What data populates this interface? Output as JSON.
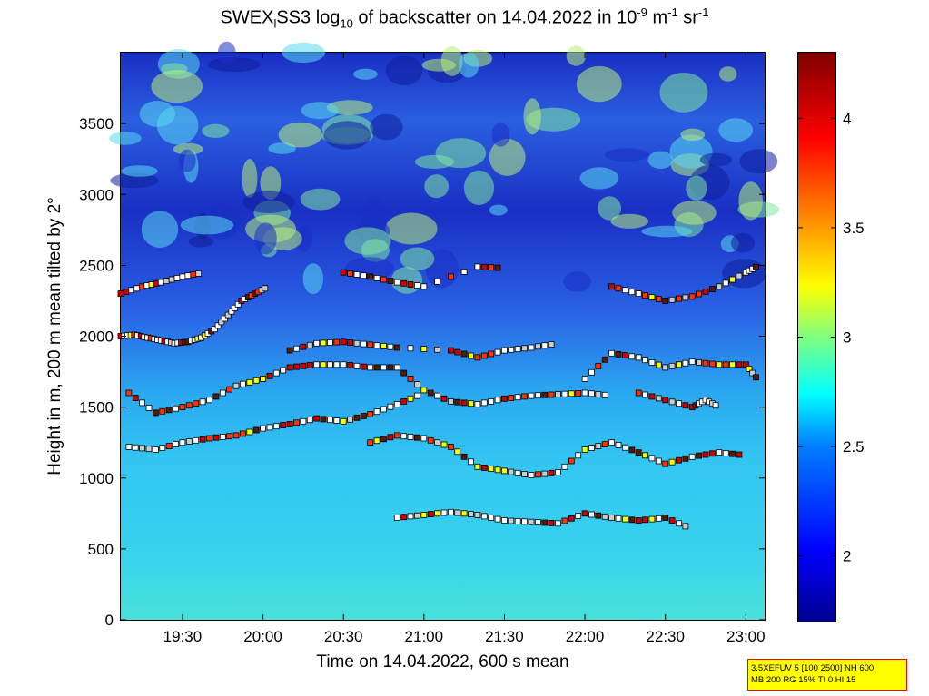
{
  "title": {
    "part1": "SWEX",
    "sub1": "l",
    "part2": "SS3 log",
    "sub2": "10",
    "part3": " of backscatter on 14.04.2022 in 10",
    "sup1": "-9",
    "part4": " m",
    "sup2": "-1",
    "part5": " sr",
    "sup3": "-1"
  },
  "info_box": {
    "line1": "3.5XEFUV 5 [100 2500] NH 600",
    "line2": "MB 200 RG 15% TI 0 HI 15"
  },
  "chart_data": {
    "type": "heatmap",
    "title": "SWEXlSS3 log10 of backscatter on 14.04.2022 in 10^-9 m^-1 sr^-1",
    "xlabel": "Time on 14.04.2022, 600 s mean",
    "ylabel": "Height in m, 200 m mean tilted by 2°",
    "x_ticks": [
      "19:30",
      "20:00",
      "20:30",
      "21:00",
      "21:30",
      "22:00",
      "22:30",
      "23:00"
    ],
    "xlim": [
      "19:07",
      "23:07"
    ],
    "y_ticks": [
      0,
      500,
      1000,
      1500,
      2000,
      2500,
      3000,
      3500
    ],
    "ylim": [
      0,
      4000
    ],
    "colorbar": {
      "ticks": [
        2,
        2.5,
        3,
        3.5,
        4
      ],
      "range": [
        1.7,
        4.3
      ],
      "colormap": "jet"
    },
    "layer_markers": [
      {
        "name": "layer-2000",
        "times": [
          "19:07",
          "19:12",
          "19:17",
          "19:22",
          "19:27",
          "19:32",
          "19:37",
          "19:42",
          "19:47",
          "19:52",
          "19:57",
          "20:02"
        ],
        "heights": [
          2000,
          2010,
          1990,
          1970,
          1950,
          1960,
          1990,
          2050,
          2150,
          2250,
          2300,
          2350
        ]
      },
      {
        "name": "layer-2400",
        "times": [
          "19:07",
          "19:15",
          "19:22",
          "19:30",
          "19:38"
        ],
        "heights": [
          2300,
          2350,
          2380,
          2420,
          2450
        ]
      },
      {
        "name": "layer-1500",
        "times": [
          "19:10",
          "19:20",
          "19:30",
          "19:40",
          "19:50",
          "20:00",
          "20:10",
          "20:20",
          "20:30",
          "20:40",
          "20:50",
          "21:00",
          "21:10",
          "21:20",
          "21:30",
          "21:40",
          "21:50",
          "22:00",
          "22:10"
        ],
        "heights": [
          1600,
          1460,
          1500,
          1550,
          1650,
          1700,
          1780,
          1800,
          1800,
          1780,
          1780,
          1620,
          1540,
          1520,
          1560,
          1580,
          1590,
          1600,
          1580
        ]
      },
      {
        "name": "layer-1250",
        "times": [
          "19:10",
          "19:20",
          "19:30",
          "19:40",
          "19:50",
          "20:00",
          "20:10",
          "20:20",
          "20:30",
          "20:40",
          "20:50",
          "21:00"
        ],
        "heights": [
          1220,
          1200,
          1250,
          1280,
          1300,
          1350,
          1380,
          1420,
          1400,
          1450,
          1520,
          1600
        ]
      },
      {
        "name": "layer-1900",
        "times": [
          "20:10",
          "20:20",
          "20:30",
          "20:40",
          "20:50",
          "21:10",
          "21:20",
          "21:30",
          "21:40",
          "21:50"
        ],
        "heights": [
          1900,
          1950,
          1960,
          1940,
          1920,
          1900,
          1850,
          1900,
          1920,
          1950
        ]
      },
      {
        "name": "layer-2400-b",
        "times": [
          "20:30",
          "20:40",
          "20:50",
          "21:00",
          "21:20",
          "21:30"
        ],
        "heights": [
          2450,
          2420,
          2380,
          2350,
          2490,
          2480
        ]
      },
      {
        "name": "layer-1200",
        "times": [
          "20:40",
          "20:50",
          "21:00",
          "21:10",
          "21:20",
          "21:30",
          "21:40",
          "21:50",
          "22:00",
          "22:10",
          "22:20",
          "22:30",
          "22:40",
          "22:50",
          "23:00"
        ],
        "heights": [
          1250,
          1300,
          1280,
          1220,
          1080,
          1050,
          1020,
          1040,
          1200,
          1250,
          1180,
          1100,
          1150,
          1180,
          1160
        ]
      },
      {
        "name": "layer-750",
        "times": [
          "20:50",
          "21:00",
          "21:10",
          "21:20",
          "21:30",
          "21:40",
          "21:50",
          "22:00",
          "22:10",
          "22:20",
          "22:30",
          "22:40"
        ],
        "heights": [
          720,
          740,
          760,
          740,
          700,
          690,
          680,
          750,
          720,
          700,
          720,
          640
        ]
      },
      {
        "name": "layer-1800",
        "times": [
          "22:00",
          "22:10",
          "22:20",
          "22:30",
          "22:40",
          "22:50",
          "23:00",
          "23:05"
        ],
        "heights": [
          1700,
          1880,
          1850,
          1780,
          1820,
          1800,
          1800,
          1680
        ]
      },
      {
        "name": "layer-2300",
        "times": [
          "22:10",
          "22:20",
          "22:30",
          "22:40",
          "22:50",
          "23:00",
          "23:05"
        ],
        "heights": [
          2350,
          2300,
          2250,
          2280,
          2350,
          2450,
          2500
        ]
      },
      {
        "name": "layer-1550",
        "times": [
          "22:20",
          "22:30",
          "22:40",
          "22:45",
          "22:50"
        ],
        "heights": [
          1600,
          1550,
          1500,
          1550,
          1500
        ]
      }
    ]
  }
}
